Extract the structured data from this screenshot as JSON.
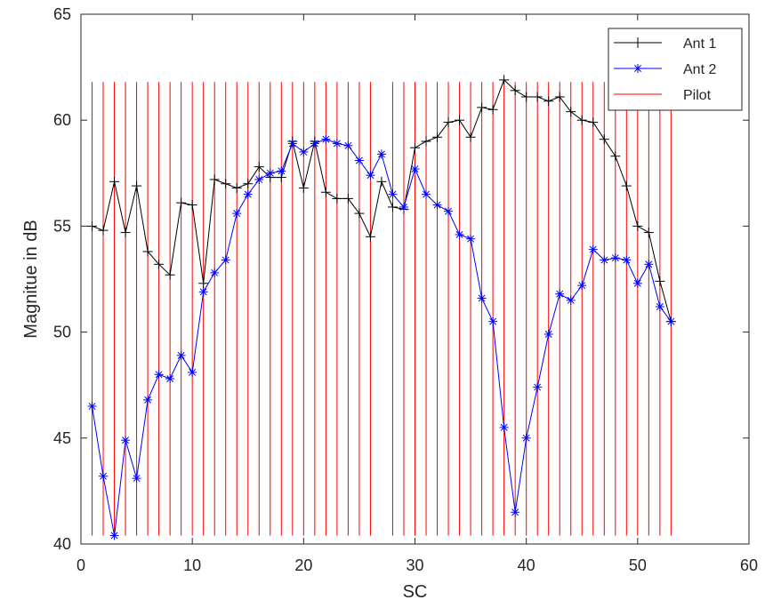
{
  "chart_data": {
    "type": "line",
    "xlabel": "SC",
    "ylabel": "Magnitue in dB",
    "xlim": [
      0,
      60
    ],
    "ylim": [
      40,
      65
    ],
    "xticks": [
      0,
      10,
      20,
      30,
      40,
      50,
      60
    ],
    "yticks": [
      40,
      45,
      50,
      55,
      60,
      65
    ],
    "grid": false,
    "legend_position": "top-right",
    "series": [
      {
        "name": "Ant 1",
        "color": "#000000",
        "marker": "plus",
        "x": [
          1,
          2,
          3,
          4,
          5,
          6,
          7,
          8,
          9,
          10,
          11,
          12,
          13,
          14,
          15,
          16,
          17,
          18,
          19,
          20,
          21,
          22,
          23,
          24,
          25,
          26,
          27,
          28,
          29,
          30,
          31,
          32,
          33,
          34,
          35,
          36,
          37,
          38,
          39,
          40,
          41,
          42,
          43,
          44,
          45,
          46,
          47,
          48,
          49,
          50,
          51,
          52,
          53
        ],
        "y": [
          55.0,
          54.8,
          57.1,
          54.7,
          56.9,
          53.8,
          53.2,
          52.7,
          56.1,
          56.0,
          52.3,
          57.2,
          57.0,
          56.8,
          57.0,
          57.8,
          57.3,
          57.3,
          59.0,
          56.8,
          59.0,
          56.6,
          56.3,
          56.3,
          55.6,
          54.5,
          57.1,
          55.9,
          55.8,
          58.7,
          59.0,
          59.2,
          59.9,
          60.0,
          59.2,
          60.6,
          60.5,
          61.9,
          61.4,
          61.1,
          61.1,
          60.9,
          61.1,
          60.4,
          60.0,
          59.9,
          59.1,
          58.3,
          56.9,
          55.0,
          54.7,
          52.4,
          50.5
        ]
      },
      {
        "name": "Ant 2",
        "color": "#0000ff",
        "marker": "asterisk",
        "x": [
          1,
          2,
          3,
          4,
          5,
          6,
          7,
          8,
          9,
          10,
          11,
          12,
          13,
          14,
          15,
          16,
          17,
          18,
          19,
          20,
          21,
          22,
          23,
          24,
          25,
          26,
          27,
          28,
          29,
          30,
          31,
          32,
          33,
          34,
          35,
          36,
          37,
          38,
          39,
          40,
          41,
          42,
          43,
          44,
          45,
          46,
          47,
          48,
          49,
          50,
          51,
          52,
          53
        ],
        "y": [
          46.5,
          43.2,
          40.4,
          44.9,
          43.1,
          46.8,
          48.0,
          47.8,
          48.9,
          48.1,
          51.9,
          52.8,
          53.4,
          55.6,
          56.5,
          57.2,
          57.5,
          57.6,
          58.9,
          58.5,
          58.9,
          59.1,
          58.9,
          58.8,
          58.1,
          57.4,
          58.4,
          56.5,
          55.9,
          57.7,
          56.5,
          56.0,
          55.7,
          54.6,
          54.4,
          51.6,
          50.5,
          45.5,
          41.5,
          45.0,
          47.4,
          49.9,
          51.8,
          51.5,
          52.2,
          53.9,
          53.4,
          53.5,
          53.4,
          52.3,
          53.2,
          51.2,
          50.5
        ]
      },
      {
        "name": "Pilot",
        "color": "#ff0000",
        "type": "stem-lines",
        "x": [
          1,
          2,
          3,
          4,
          5,
          6,
          7,
          8,
          9,
          10,
          11,
          12,
          13,
          14,
          15,
          16,
          17,
          18,
          19,
          20,
          21,
          22,
          23,
          24,
          25,
          26,
          28,
          29,
          30,
          31,
          32,
          33,
          34,
          35,
          36,
          37,
          38,
          39,
          40,
          41,
          42,
          43,
          44,
          45,
          46,
          47,
          48,
          49,
          50,
          51,
          52,
          53
        ],
        "y_range": [
          40.4,
          61.8
        ]
      }
    ]
  }
}
